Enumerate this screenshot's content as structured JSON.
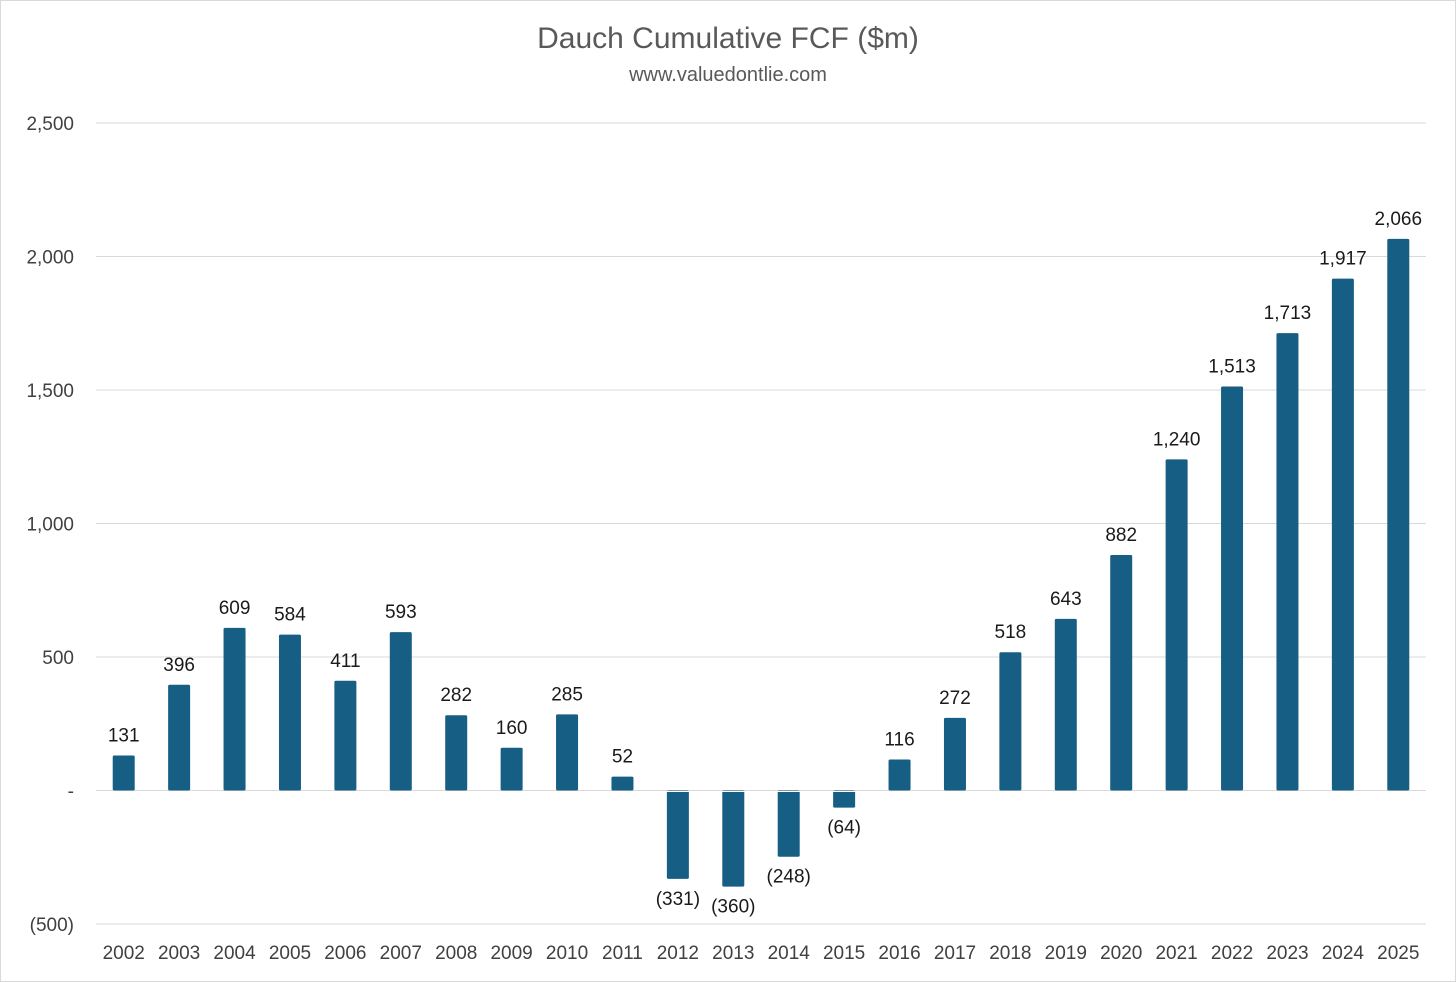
{
  "chart_data": {
    "type": "bar",
    "title": "Dauch Cumulative FCF ($m)",
    "subtitle": "www.valuedontlie.com",
    "xlabel": "",
    "ylabel": "",
    "categories": [
      "2002",
      "2003",
      "2004",
      "2005",
      "2006",
      "2007",
      "2008",
      "2009",
      "2010",
      "2011",
      "2012",
      "2013",
      "2014",
      "2015",
      "2016",
      "2017",
      "2018",
      "2019",
      "2020",
      "2021",
      "2022",
      "2023",
      "2024",
      "2025"
    ],
    "values": [
      131,
      396,
      609,
      584,
      411,
      593,
      282,
      160,
      285,
      52,
      -331,
      -360,
      -248,
      -64,
      116,
      272,
      518,
      643,
      882,
      1240,
      1513,
      1713,
      1917,
      2066
    ],
    "data_labels": [
      "131",
      "396",
      "609",
      "584",
      "411",
      "593",
      "282",
      "160",
      "285",
      "52",
      "(331)",
      "(360)",
      "(248)",
      "(64)",
      "116",
      "272",
      "518",
      "643",
      "882",
      "1,240",
      "1,513",
      "1,713",
      "1,917",
      "2,066"
    ],
    "ylim": [
      -500,
      2500
    ],
    "yticks": [
      -500,
      0,
      500,
      1000,
      1500,
      2000,
      2500
    ],
    "ytick_labels": [
      "(500)",
      "-",
      "500",
      "1,000",
      "1,500",
      "2,000",
      "2,500"
    ],
    "grid": true,
    "legend": "none",
    "bar_color": "#165e83",
    "gridline_color": "#d9d9d9"
  }
}
